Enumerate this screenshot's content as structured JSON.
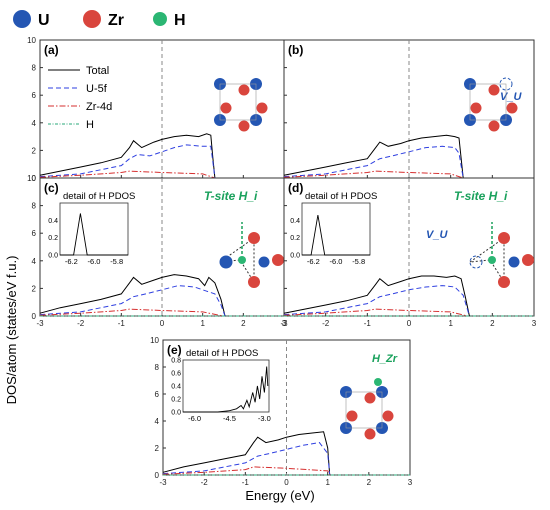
{
  "legend_top": [
    {
      "label": "U",
      "color": "#2456b3"
    },
    {
      "label": "Zr",
      "color": "#d9453d"
    },
    {
      "label": "H",
      "color": "#2bb673"
    }
  ],
  "ylabel": "DOS/atom (states/eV f.u.)",
  "xlabel": "Energy (eV)",
  "colors": {
    "total": "#000000",
    "u5f": "#2e3fe0",
    "zr4d": "#d62f2f",
    "h": "#2aa87a",
    "fermi": "#888888"
  },
  "chart_data": [
    {
      "panel": "(a)",
      "type": "line",
      "xlim": [
        -3,
        3
      ],
      "ylim": [
        0,
        10
      ],
      "xticks": [
        -3,
        -2,
        -1,
        0,
        1,
        2,
        3
      ],
      "yticks": [
        0,
        2,
        4,
        6,
        8,
        10
      ],
      "legend": [
        "Total",
        "U-5f",
        "Zr-4d",
        "H"
      ],
      "series": [
        {
          "name": "Total",
          "points": [
            [
              -3,
              0.2
            ],
            [
              -2.5,
              0.5
            ],
            [
              -2,
              0.8
            ],
            [
              -1.5,
              1.1
            ],
            [
              -1,
              1.5
            ],
            [
              -0.8,
              2.2
            ],
            [
              -0.7,
              2.7
            ],
            [
              -0.5,
              2.2
            ],
            [
              -0.2,
              2.6
            ],
            [
              0,
              2.8
            ],
            [
              0.3,
              3.0
            ],
            [
              0.6,
              3.1
            ],
            [
              0.9,
              3.0
            ],
            [
              1.1,
              3.2
            ],
            [
              1.2,
              3.1
            ],
            [
              1.25,
              1.5
            ],
            [
              1.3,
              0
            ]
          ]
        },
        {
          "name": "U-5f",
          "points": [
            [
              -3,
              0.1
            ],
            [
              -2,
              0.3
            ],
            [
              -1.5,
              0.6
            ],
            [
              -1,
              0.9
            ],
            [
              -0.8,
              1.4
            ],
            [
              -0.6,
              1.7
            ],
            [
              -0.3,
              1.6
            ],
            [
              0,
              1.9
            ],
            [
              0.3,
              2.2
            ],
            [
              0.6,
              2.4
            ],
            [
              1,
              2.3
            ],
            [
              1.2,
              2.3
            ],
            [
              1.25,
              1.2
            ],
            [
              1.3,
              0
            ]
          ]
        },
        {
          "name": "Zr-4d",
          "points": [
            [
              -3,
              0.05
            ],
            [
              -2,
              0.2
            ],
            [
              -1,
              0.4
            ],
            [
              -0.8,
              0.5
            ],
            [
              0,
              0.4
            ],
            [
              1,
              0.3
            ],
            [
              1.3,
              0
            ]
          ]
        },
        {
          "name": "H",
          "points": [
            [
              -3,
              0
            ],
            [
              3,
              0
            ]
          ]
        }
      ]
    },
    {
      "panel": "(b)",
      "type": "line",
      "xlim": [
        -3,
        3
      ],
      "ylim": [
        0,
        10
      ],
      "xticks": [
        -3,
        -2,
        -1,
        0,
        1,
        2,
        3
      ],
      "yticks": [
        0,
        2,
        4,
        6,
        8,
        10
      ],
      "annotation": "V_U",
      "series": [
        {
          "name": "Total",
          "points": [
            [
              -3,
              0.2
            ],
            [
              -2.5,
              0.5
            ],
            [
              -2,
              0.8
            ],
            [
              -1.5,
              1.1
            ],
            [
              -1,
              1.4
            ],
            [
              -0.8,
              2.2
            ],
            [
              -0.7,
              2.6
            ],
            [
              -0.5,
              2.3
            ],
            [
              -0.2,
              2.5
            ],
            [
              0,
              2.7
            ],
            [
              0.3,
              2.9
            ],
            [
              0.6,
              3.0
            ],
            [
              0.9,
              3.1
            ],
            [
              1.1,
              3.0
            ],
            [
              1.2,
              2.9
            ],
            [
              1.3,
              0
            ]
          ]
        },
        {
          "name": "U-5f",
          "points": [
            [
              -3,
              0.1
            ],
            [
              -2,
              0.3
            ],
            [
              -1.5,
              0.6
            ],
            [
              -1,
              0.9
            ],
            [
              -0.7,
              1.4
            ],
            [
              -0.4,
              1.6
            ],
            [
              0,
              1.9
            ],
            [
              0.4,
              2.2
            ],
            [
              0.8,
              2.3
            ],
            [
              1.1,
              2.2
            ],
            [
              1.2,
              1.8
            ],
            [
              1.3,
              0
            ]
          ]
        },
        {
          "name": "Zr-4d",
          "points": [
            [
              -3,
              0.05
            ],
            [
              -2,
              0.2
            ],
            [
              -1,
              0.4
            ],
            [
              -0.8,
              0.5
            ],
            [
              0,
              0.4
            ],
            [
              1,
              0.3
            ],
            [
              1.3,
              0
            ]
          ]
        },
        {
          "name": "H",
          "points": [
            [
              -3,
              0
            ],
            [
              3,
              0
            ]
          ]
        }
      ]
    },
    {
      "panel": "(c)",
      "type": "line",
      "xlim": [
        -3,
        3
      ],
      "ylim": [
        0,
        10
      ],
      "xticks": [
        -3,
        -2,
        -1,
        0,
        1,
        2,
        3
      ],
      "yticks": [
        0,
        2,
        4,
        6,
        8,
        10
      ],
      "annotation": "T-site H_i",
      "inset": {
        "title": "detail of H PDOS",
        "xlim": [
          -6.3,
          -5.7
        ],
        "ylim": [
          0,
          0.6
        ],
        "xticks": [
          -6.2,
          -6.0,
          -5.8
        ],
        "yticks": [
          0.0,
          0.2,
          0.4
        ],
        "points": [
          [
            -6.3,
            0
          ],
          [
            -6.18,
            0
          ],
          [
            -6.12,
            0.48
          ],
          [
            -6.06,
            0
          ],
          [
            -5.7,
            0
          ]
        ]
      },
      "series": [
        {
          "name": "Total",
          "points": [
            [
              -3,
              0.2
            ],
            [
              -2.5,
              0.6
            ],
            [
              -2,
              0.9
            ],
            [
              -1.5,
              1.2
            ],
            [
              -1,
              1.6
            ],
            [
              -0.8,
              2.4
            ],
            [
              -0.7,
              2.8
            ],
            [
              -0.5,
              2.3
            ],
            [
              -0.2,
              2.6
            ],
            [
              0,
              2.8
            ],
            [
              0.3,
              3.0
            ],
            [
              0.6,
              2.9
            ],
            [
              0.9,
              2.7
            ],
            [
              1.05,
              2.2
            ],
            [
              1.15,
              2.8
            ],
            [
              1.3,
              2.4
            ],
            [
              1.45,
              1.2
            ],
            [
              1.55,
              0
            ]
          ]
        },
        {
          "name": "U-5f",
          "points": [
            [
              -3,
              0.1
            ],
            [
              -2,
              0.3
            ],
            [
              -1.5,
              0.6
            ],
            [
              -1,
              0.9
            ],
            [
              -0.7,
              1.4
            ],
            [
              -0.4,
              1.6
            ],
            [
              0,
              1.9
            ],
            [
              0.4,
              2.2
            ],
            [
              0.8,
              2.1
            ],
            [
              1.1,
              1.8
            ],
            [
              1.3,
              1.6
            ],
            [
              1.45,
              0.8
            ],
            [
              1.55,
              0
            ]
          ]
        },
        {
          "name": "Zr-4d",
          "points": [
            [
              -3,
              0.05
            ],
            [
              -2,
              0.2
            ],
            [
              -1,
              0.4
            ],
            [
              -0.8,
              0.5
            ],
            [
              0,
              0.4
            ],
            [
              1,
              0.3
            ],
            [
              1.5,
              0
            ]
          ]
        },
        {
          "name": "H",
          "points": [
            [
              -3,
              0
            ],
            [
              3,
              0
            ]
          ]
        }
      ]
    },
    {
      "panel": "(d)",
      "type": "line",
      "xlim": [
        -3,
        3
      ],
      "ylim": [
        0,
        10
      ],
      "xticks": [
        -3,
        -2,
        -1,
        0,
        1,
        2,
        3
      ],
      "yticks": [
        0,
        2,
        4,
        6,
        8,
        10
      ],
      "annotation": "T-site H_i",
      "vacancy_label": "V_U",
      "inset": {
        "title": "detail of H PDOS",
        "xlim": [
          -6.3,
          -5.7
        ],
        "ylim": [
          0,
          0.6
        ],
        "xticks": [
          -6.2,
          -6.0,
          -5.8
        ],
        "yticks": [
          0.0,
          0.2,
          0.4
        ],
        "points": [
          [
            -6.3,
            0
          ],
          [
            -6.22,
            0
          ],
          [
            -6.16,
            0.46
          ],
          [
            -6.1,
            0
          ],
          [
            -5.7,
            0
          ]
        ]
      },
      "series": [
        {
          "name": "Total",
          "points": [
            [
              -3,
              0.2
            ],
            [
              -2.5,
              0.5
            ],
            [
              -2,
              0.8
            ],
            [
              -1.5,
              1.1
            ],
            [
              -1,
              1.5
            ],
            [
              -0.8,
              2.3
            ],
            [
              -0.7,
              2.7
            ],
            [
              -0.5,
              2.2
            ],
            [
              -0.2,
              2.5
            ],
            [
              0,
              2.7
            ],
            [
              0.3,
              2.9
            ],
            [
              0.6,
              2.9
            ],
            [
              0.9,
              2.8
            ],
            [
              1.1,
              2.9
            ],
            [
              1.25,
              2.7
            ],
            [
              1.35,
              1.4
            ],
            [
              1.45,
              0
            ]
          ]
        },
        {
          "name": "U-5f",
          "points": [
            [
              -3,
              0.1
            ],
            [
              -2,
              0.3
            ],
            [
              -1.5,
              0.6
            ],
            [
              -1,
              0.9
            ],
            [
              -0.7,
              1.4
            ],
            [
              -0.4,
              1.6
            ],
            [
              0,
              1.9
            ],
            [
              0.4,
              2.1
            ],
            [
              0.8,
              2.2
            ],
            [
              1.1,
              2.1
            ],
            [
              1.3,
              1.5
            ],
            [
              1.45,
              0
            ]
          ]
        },
        {
          "name": "Zr-4d",
          "points": [
            [
              -3,
              0.05
            ],
            [
              -2,
              0.2
            ],
            [
              -1,
              0.4
            ],
            [
              -0.8,
              0.5
            ],
            [
              0,
              0.4
            ],
            [
              1,
              0.3
            ],
            [
              1.4,
              0
            ]
          ]
        },
        {
          "name": "H",
          "points": [
            [
              -3,
              0
            ],
            [
              3,
              0
            ]
          ]
        }
      ]
    },
    {
      "panel": "(e)",
      "type": "line",
      "xlim": [
        -3,
        3
      ],
      "ylim": [
        0,
        10
      ],
      "xticks": [
        -3,
        -2,
        -1,
        0,
        1,
        2,
        3
      ],
      "yticks": [
        0,
        2,
        4,
        6,
        8,
        10
      ],
      "annotation": "H_Zr",
      "inset": {
        "title": "detail of H PDOS",
        "xlim": [
          -6.5,
          -2.8
        ],
        "ylim": [
          0,
          0.8
        ],
        "xticks": [
          -6.0,
          -4.5,
          -3.0
        ],
        "yticks": [
          0.0,
          0.2,
          0.4,
          0.6,
          0.8
        ],
        "points": [
          [
            -6.5,
            0
          ],
          [
            -5,
            0
          ],
          [
            -4.5,
            0.02
          ],
          [
            -4.2,
            0.05
          ],
          [
            -4.0,
            0.1
          ],
          [
            -3.9,
            0.05
          ],
          [
            -3.75,
            0.18
          ],
          [
            -3.65,
            0.08
          ],
          [
            -3.5,
            0.3
          ],
          [
            -3.4,
            0.15
          ],
          [
            -3.3,
            0.4
          ],
          [
            -3.2,
            0.2
          ],
          [
            -3.1,
            0.55
          ],
          [
            -3.0,
            0.3
          ],
          [
            -2.9,
            0.7
          ],
          [
            -2.85,
            0.4
          ]
        ]
      },
      "series": [
        {
          "name": "Total",
          "points": [
            [
              -3,
              0.2
            ],
            [
              -2.5,
              0.6
            ],
            [
              -2,
              0.9
            ],
            [
              -1.5,
              1.2
            ],
            [
              -1,
              1.5
            ],
            [
              -0.8,
              2.4
            ],
            [
              -0.7,
              2.8
            ],
            [
              -0.5,
              2.4
            ],
            [
              -0.2,
              2.6
            ],
            [
              0,
              2.8
            ],
            [
              0.3,
              3.0
            ],
            [
              0.6,
              3.1
            ],
            [
              0.9,
              3.2
            ],
            [
              1.0,
              2.0
            ],
            [
              1.05,
              0
            ]
          ]
        },
        {
          "name": "U-5f",
          "points": [
            [
              -3,
              0.1
            ],
            [
              -2,
              0.3
            ],
            [
              -1.5,
              0.6
            ],
            [
              -1,
              0.9
            ],
            [
              -0.7,
              1.4
            ],
            [
              -0.4,
              1.6
            ],
            [
              0,
              1.9
            ],
            [
              0.4,
              2.2
            ],
            [
              0.8,
              2.4
            ],
            [
              1.0,
              1.6
            ],
            [
              1.05,
              0
            ]
          ]
        },
        {
          "name": "Zr-4d",
          "points": [
            [
              -3,
              0.05
            ],
            [
              -2,
              0.2
            ],
            [
              -1,
              0.4
            ],
            [
              -0.8,
              0.6
            ],
            [
              0,
              0.5
            ],
            [
              1,
              0.3
            ],
            [
              1.05,
              0
            ]
          ]
        },
        {
          "name": "H",
          "points": [
            [
              -3,
              0
            ],
            [
              3,
              0
            ]
          ]
        }
      ]
    }
  ]
}
